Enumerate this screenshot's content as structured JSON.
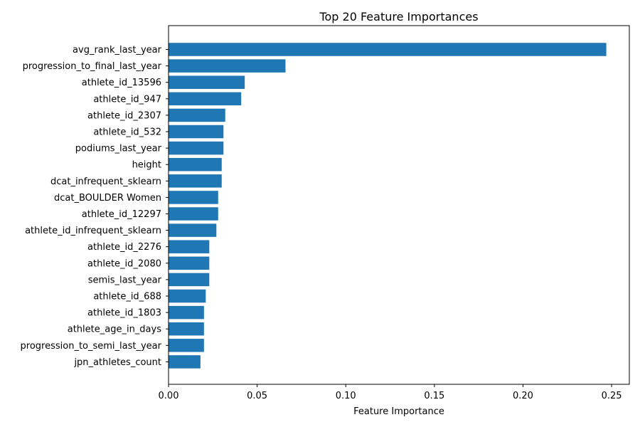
{
  "chart_data": {
    "type": "bar",
    "orientation": "horizontal",
    "title": "Top 20 Feature Importances",
    "xlabel": "Feature Importance",
    "ylabel": "",
    "xlim": [
      0,
      0.26
    ],
    "xticks": [
      0.0,
      0.05,
      0.1,
      0.15,
      0.2,
      0.25
    ],
    "xtick_labels": [
      "0.00",
      "0.05",
      "0.10",
      "0.15",
      "0.20",
      "0.25"
    ],
    "grid": false,
    "bar_color": "#1f77b4",
    "categories": [
      "avg_rank_last_year",
      "progression_to_final_last_year",
      "athlete_id_13596",
      "athlete_id_947",
      "athlete_id_2307",
      "athlete_id_532",
      "podiums_last_year",
      "height",
      "dcat_infrequent_sklearn",
      "dcat_BOULDER Women",
      "athlete_id_12297",
      "athlete_id_infrequent_sklearn",
      "athlete_id_2276",
      "athlete_id_2080",
      "semis_last_year",
      "athlete_id_688",
      "athlete_id_1803",
      "athlete_age_in_days",
      "progression_to_semi_last_year",
      "jpn_athletes_count"
    ],
    "values": [
      0.247,
      0.066,
      0.043,
      0.041,
      0.032,
      0.031,
      0.031,
      0.03,
      0.03,
      0.028,
      0.028,
      0.027,
      0.023,
      0.023,
      0.023,
      0.021,
      0.02,
      0.02,
      0.02,
      0.018
    ]
  }
}
